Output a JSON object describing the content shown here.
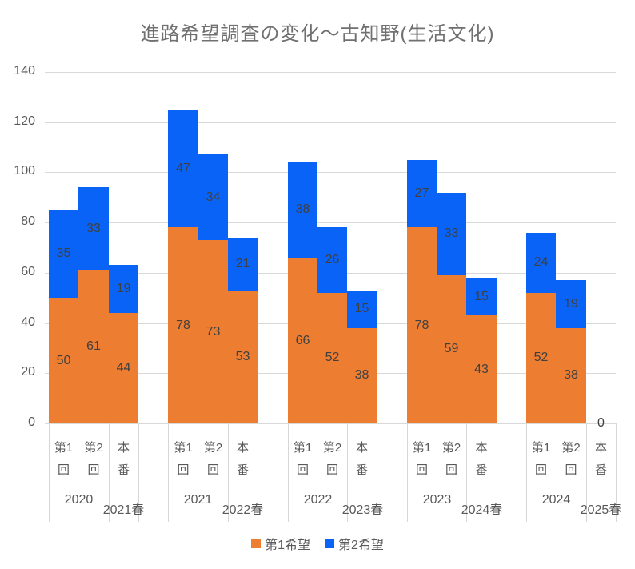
{
  "chart_data": {
    "type": "bar",
    "variant": "stacked-column",
    "title": "進路希望調査の変化～古知野(生活文化)",
    "xlabel": "",
    "ylabel": "",
    "ylim": [
      0,
      140
    ],
    "yticks": [
      0,
      20,
      40,
      60,
      80,
      100,
      120,
      140
    ],
    "grid": true,
    "legend_position": "bottom",
    "series": [
      {
        "name": "第1希望",
        "color": "#ED7D31"
      },
      {
        "name": "第2希望",
        "color": "#0A63F7"
      }
    ],
    "category_labels": [
      "第1回",
      "第2回",
      "本番"
    ],
    "groups": [
      {
        "survey_year": "2020",
        "result_year": "2021春",
        "first_choice": [
          50,
          61,
          44
        ],
        "second_choice": [
          35,
          33,
          19
        ]
      },
      {
        "survey_year": "2021",
        "result_year": "2022春",
        "first_choice": [
          78,
          73,
          53
        ],
        "second_choice": [
          47,
          34,
          21
        ]
      },
      {
        "survey_year": "2022",
        "result_year": "2023春",
        "first_choice": [
          66,
          52,
          38
        ],
        "second_choice": [
          38,
          26,
          15
        ]
      },
      {
        "survey_year": "2023",
        "result_year": "2024春",
        "first_choice": [
          78,
          59,
          43
        ],
        "second_choice": [
          27,
          33,
          15
        ]
      },
      {
        "survey_year": "2024",
        "result_year": "2025春",
        "first_choice": [
          52,
          38,
          0
        ],
        "second_choice": [
          24,
          19,
          null
        ]
      }
    ],
    "colors": {
      "gridline": "#D9D9D9",
      "axis_text": "#595959",
      "data_label": "#404040",
      "title_text": "#707070"
    }
  }
}
